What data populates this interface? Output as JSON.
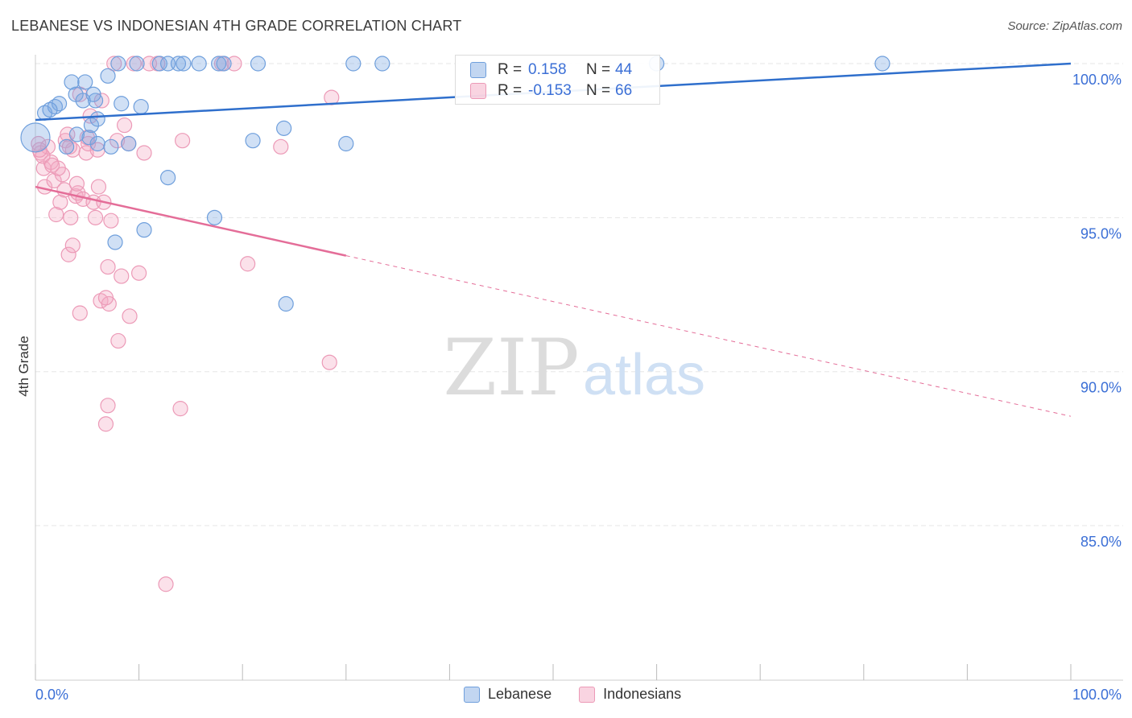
{
  "header": {
    "title": "LEBANESE VS INDONESIAN 4TH GRADE CORRELATION CHART",
    "source": "Source: ZipAtlas.com"
  },
  "watermark": {
    "zip": "ZIP",
    "atlas": "atlas"
  },
  "stats": {
    "rows": [
      {
        "r_label": "R =",
        "r_value": "0.158",
        "n_label": "N =",
        "n_value": "44",
        "color": "#6fa0e0"
      },
      {
        "r_label": "R =",
        "r_value": "-0.153",
        "n_label": "N =",
        "n_value": "66",
        "color": "#f0a3bd"
      }
    ]
  },
  "legend": {
    "items": [
      {
        "label": "Lebanese"
      },
      {
        "label": "Indonesians"
      }
    ]
  },
  "colors": {
    "lebanese_fill": "rgba(120,165,225,0.35)",
    "lebanese_stroke": "#6f9fdc",
    "lebanese_line": "#2f6fcc",
    "indonesian_fill": "rgba(244,170,195,0.35)",
    "indonesian_stroke": "#ec9ab7",
    "indonesian_line": "#e46d98",
    "axis_text": "#3b6fd6",
    "grid": "#e6e6e6"
  },
  "chart_data": {
    "type": "scatter",
    "title": "LEBANESE VS INDONESIAN 4TH GRADE CORRELATION CHART",
    "xlabel": "",
    "ylabel": "4th Grade",
    "xlim": [
      0,
      100
    ],
    "ylim": [
      80.5,
      100.8
    ],
    "x_ticks": [
      "0.0%",
      "100.0%"
    ],
    "y_ticks": [
      {
        "value": 100,
        "label": "100.0%"
      },
      {
        "value": 95,
        "label": "95.0%"
      },
      {
        "value": 90,
        "label": "90.0%"
      },
      {
        "value": 85,
        "label": "85.0%"
      }
    ],
    "grid": true,
    "legend_position": "bottom",
    "series": [
      {
        "name": "Lebanese",
        "r": 0.158,
        "n": 44,
        "trend": {
          "x0": 0,
          "y0": 98.17,
          "x1": 100,
          "y1": 100.0,
          "dashed_from": null
        },
        "points": [
          [
            0.0,
            97.6
          ],
          [
            0.9,
            98.4
          ],
          [
            1.9,
            98.6
          ],
          [
            2.3,
            98.7
          ],
          [
            3.5,
            99.4
          ],
          [
            3.9,
            99.0
          ],
          [
            4.6,
            98.8
          ],
          [
            4.8,
            99.4
          ],
          [
            5.2,
            97.6
          ],
          [
            5.4,
            98.0
          ],
          [
            5.8,
            98.8
          ],
          [
            6.0,
            98.2
          ],
          [
            7.0,
            99.6
          ],
          [
            8.0,
            100.0
          ],
          [
            8.3,
            98.7
          ],
          [
            9.8,
            100.0
          ],
          [
            10.2,
            98.6
          ],
          [
            12.0,
            100.0
          ],
          [
            12.8,
            100.0
          ],
          [
            13.8,
            100.0
          ],
          [
            14.3,
            100.0
          ],
          [
            15.8,
            100.0
          ],
          [
            17.7,
            100.0
          ],
          [
            18.2,
            100.0
          ],
          [
            21.5,
            100.0
          ],
          [
            30.7,
            100.0
          ],
          [
            33.5,
            100.0
          ],
          [
            81.8,
            100.0
          ],
          [
            60.0,
            100.0
          ],
          [
            3.0,
            97.3
          ],
          [
            6.0,
            97.4
          ],
          [
            7.3,
            97.3
          ],
          [
            9.0,
            97.4
          ],
          [
            12.8,
            96.3
          ],
          [
            17.3,
            95.0
          ],
          [
            10.5,
            94.6
          ],
          [
            7.7,
            94.2
          ],
          [
            21.0,
            97.5
          ],
          [
            24.0,
            97.9
          ],
          [
            30.0,
            97.4
          ],
          [
            24.2,
            92.2
          ],
          [
            1.4,
            98.5
          ],
          [
            4.0,
            97.7
          ],
          [
            5.6,
            99.0
          ]
        ]
      },
      {
        "name": "Indonesians",
        "r": -0.153,
        "n": 66,
        "trend": {
          "x0": 0,
          "y0": 96.0,
          "x1": 100,
          "y1": 88.55,
          "dashed_from": 30
        },
        "points": [
          [
            0.3,
            97.4
          ],
          [
            0.5,
            97.1
          ],
          [
            0.8,
            96.6
          ],
          [
            0.9,
            96.0
          ],
          [
            1.2,
            97.3
          ],
          [
            1.5,
            96.8
          ],
          [
            1.8,
            96.2
          ],
          [
            2.0,
            95.1
          ],
          [
            2.4,
            95.5
          ],
          [
            2.6,
            96.4
          ],
          [
            2.9,
            97.5
          ],
          [
            3.1,
            97.7
          ],
          [
            3.4,
            95.0
          ],
          [
            3.6,
            97.2
          ],
          [
            3.9,
            95.7
          ],
          [
            4.1,
            95.8
          ],
          [
            4.3,
            99.0
          ],
          [
            4.6,
            95.6
          ],
          [
            4.9,
            97.1
          ],
          [
            5.1,
            97.4
          ],
          [
            5.3,
            98.3
          ],
          [
            5.6,
            95.5
          ],
          [
            5.8,
            95.0
          ],
          [
            6.1,
            96.0
          ],
          [
            6.4,
            98.8
          ],
          [
            6.6,
            95.5
          ],
          [
            7.0,
            93.4
          ],
          [
            7.3,
            94.9
          ],
          [
            7.6,
            100.0
          ],
          [
            7.9,
            97.5
          ],
          [
            8.3,
            93.1
          ],
          [
            8.6,
            98.0
          ],
          [
            9.1,
            91.8
          ],
          [
            9.5,
            100.0
          ],
          [
            10.0,
            93.2
          ],
          [
            10.5,
            97.1
          ],
          [
            11.8,
            100.0
          ],
          [
            14.2,
            97.5
          ],
          [
            18.0,
            100.0
          ],
          [
            19.2,
            100.0
          ],
          [
            20.5,
            93.5
          ],
          [
            23.7,
            97.3
          ],
          [
            28.6,
            98.9
          ],
          [
            28.4,
            90.3
          ],
          [
            6.3,
            92.3
          ],
          [
            7.1,
            92.2
          ],
          [
            6.8,
            92.4
          ],
          [
            4.3,
            91.9
          ],
          [
            8.0,
            91.0
          ],
          [
            7.0,
            88.9
          ],
          [
            6.8,
            88.3
          ],
          [
            14.0,
            88.8
          ],
          [
            12.6,
            83.1
          ],
          [
            3.2,
            93.8
          ],
          [
            3.6,
            94.1
          ],
          [
            2.2,
            96.6
          ],
          [
            0.7,
            97.0
          ],
          [
            1.6,
            96.7
          ],
          [
            2.8,
            95.9
          ],
          [
            4.0,
            96.1
          ],
          [
            5.0,
            97.6
          ],
          [
            9.0,
            97.4
          ],
          [
            0.4,
            97.2
          ],
          [
            3.3,
            97.3
          ],
          [
            6.0,
            97.2
          ],
          [
            11.0,
            100.0
          ]
        ]
      }
    ]
  }
}
